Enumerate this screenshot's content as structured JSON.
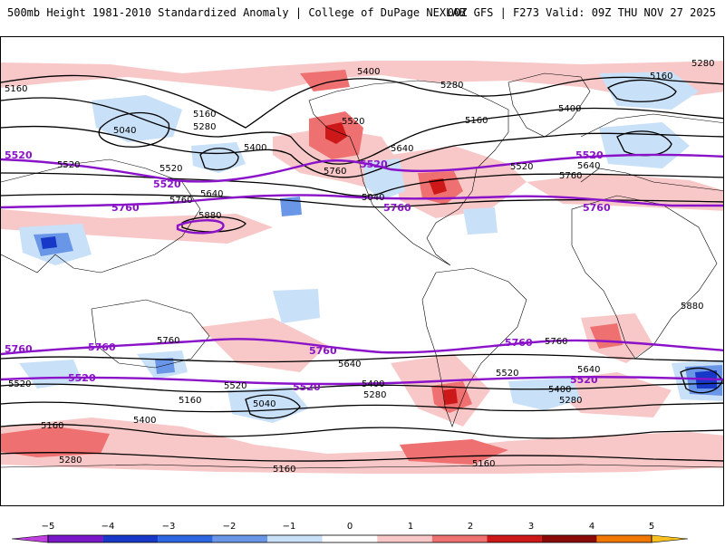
{
  "header": {
    "title": "500mb Height 1981-2010 Standardized Anomaly | College of DuPage NEXLAB",
    "run_info": "00Z GFS | F273 Valid: 09Z THU NOV 27 2025"
  },
  "map": {
    "height_labels": [
      "5160",
      "5040",
      "5160",
      "5280",
      "5400",
      "5520",
      "5520",
      "5640",
      "5760",
      "5880",
      "5400",
      "5280",
      "5160",
      "5520",
      "5640",
      "5760",
      "5400",
      "5520",
      "5640",
      "5760",
      "5280",
      "5040",
      "5160",
      "5400",
      "5160",
      "5280",
      "5040",
      "5160",
      "5280",
      "5400",
      "5640",
      "5520",
      "5760",
      "5160",
      "5280",
      "5400",
      "5520",
      "5640",
      "5760",
      "5880",
      "5520",
      "5160"
    ],
    "highlight_labels": [
      "5520",
      "5760",
      "5520",
      "5760",
      "5520",
      "5760",
      "5520",
      "5760",
      "5760",
      "5760",
      "5520",
      "5520",
      "5760",
      "5520"
    ],
    "anomaly_colors": {
      "pos_weak": "#f8c8c8",
      "pos_mod": "#ee7070",
      "pos_strong": "#cc1818",
      "neg_weak": "#c8e0f8",
      "neg_mod": "#6a96e8",
      "neg_strong": "#1838c8",
      "highlight_contour": "#8a12c8"
    }
  },
  "colorbar": {
    "ticks": [
      "−5",
      "−4",
      "−3",
      "−2",
      "−1",
      "0",
      "1",
      "2",
      "3",
      "4",
      "5"
    ],
    "colors": [
      "#c040e0",
      "#7818c8",
      "#1838c8",
      "#2c66e0",
      "#6a96e8",
      "#c8e0f8",
      "#ffffff",
      "#f8c8c8",
      "#ee7070",
      "#cc1818",
      "#8a0a0a",
      "#f07800",
      "#f8c020"
    ]
  }
}
